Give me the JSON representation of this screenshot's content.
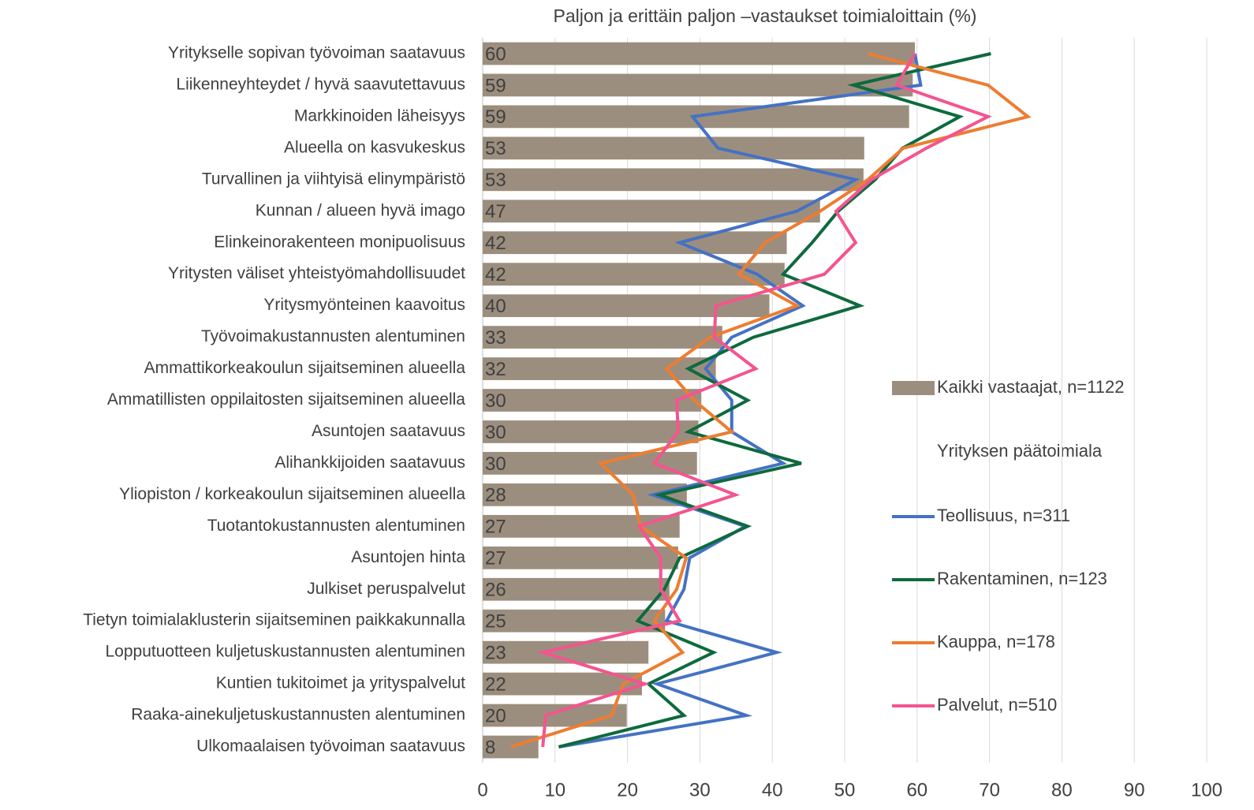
{
  "chart_data": {
    "type": "bar",
    "orientation": "horizontal",
    "title": "Paljon ja erittäin paljon –vastaukset toimialoittain (%)",
    "legend_subtitle": "Yrityksen päätoimiala",
    "categories": [
      "Yritykselle sopivan työvoiman saatavuus",
      "Liikenneyhteydet / hyvä saavutettavuus",
      "Markkinoiden läheisyys",
      "Alueella on kasvukeskus",
      "Turvallinen ja viihtyisä elinympäristö",
      "Kunnan / alueen hyvä imago",
      "Elinkeinorakenteen monipuolisuus",
      "Yritysten väliset yhteistyömahdollisuudet",
      "Yritysmyönteinen kaavoitus",
      "Työvoimakustannusten alentuminen",
      "Ammattikorkeakoulun sijaitseminen alueella",
      "Ammatillisten oppilaitosten sijaitseminen alueella",
      "Asuntojen saatavuus",
      "Alihankkijoiden saatavuus",
      "Yliopiston / korkeakoulun sijaitseminen alueella",
      "Tuotantokustannusten alentuminen",
      "Asuntojen hinta",
      "Julkiset peruspalvelut",
      "Tietyn toimialaklusterin sijaitseminen paikkakunnalla",
      "Lopputuotteen kuljetuskustannusten alentuminen",
      "Kuntien tukitoimet ja yrityspalvelut",
      "Raaka-ainekuljetuskustannusten alentuminen",
      "Ulkomaalaisen työvoiman saatavuus"
    ],
    "series": [
      {
        "name": "Kaikki vastaajat, n=1122",
        "type": "bar",
        "color": "#9c8e7e",
        "values": [
          59.7,
          59.4,
          58.9,
          52.7,
          52.6,
          46.6,
          42.0,
          41.7,
          39.6,
          33.1,
          32.2,
          30.2,
          29.8,
          29.6,
          28.2,
          27.2,
          27.0,
          25.8,
          25.2,
          22.9,
          22.0,
          19.9,
          7.7
        ],
        "value_labels": [
          "60",
          "59",
          "59",
          "53",
          "53",
          "47",
          "42",
          "42",
          "40",
          "33",
          "32",
          "30",
          "30",
          "30",
          "28",
          "27",
          "27",
          "26",
          "25",
          "23",
          "22",
          "20",
          "8"
        ]
      },
      {
        "name": "Teollisuus, n=311",
        "type": "line",
        "color": "#4472c4",
        "values": [
          59.7,
          60.5,
          29.0,
          32.5,
          51.5,
          43.4,
          27.2,
          37.9,
          44.2,
          34.4,
          30.8,
          34.4,
          34.4,
          41.5,
          23.5,
          36.3,
          28.6,
          27.8,
          25.4,
          40.6,
          24.1,
          36.4,
          10.5
        ]
      },
      {
        "name": "Rakentaminen, n=123",
        "type": "line",
        "color": "#0e6a3e",
        "values": [
          70.2,
          51.2,
          65.9,
          58.0,
          54.2,
          49.1,
          45.5,
          41.5,
          52.1,
          37.4,
          28.4,
          36.6,
          28.4,
          44.0,
          24.4,
          36.6,
          27.2,
          25.1,
          21.4,
          31.9,
          22.9,
          27.8,
          10.5
        ]
      },
      {
        "name": "Kauppa, n=178",
        "type": "line",
        "color": "#ed7d31",
        "values": [
          53.2,
          69.8,
          75.3,
          58.1,
          53.2,
          46.6,
          39.0,
          35.4,
          43.4,
          31.4,
          25.4,
          29.2,
          34.4,
          16.3,
          20.8,
          21.8,
          28.1,
          26.8,
          23.7,
          27.6,
          19.4,
          17.8,
          3.9
        ]
      },
      {
        "name": "Palvelut, n=510",
        "type": "line",
        "color": "#f4548f",
        "values": [
          59.7,
          57.2,
          69.8,
          61.3,
          53.7,
          48.8,
          51.5,
          47.2,
          32.2,
          32.0,
          37.7,
          26.8,
          27.0,
          23.7,
          34.9,
          21.6,
          24.6,
          24.6,
          27.2,
          8.3,
          22.4,
          8.7,
          8.3
        ]
      }
    ],
    "xlim": [
      0,
      100
    ],
    "xticks": [
      0,
      10,
      20,
      30,
      40,
      50,
      60,
      70,
      80,
      90,
      100
    ],
    "grid": true,
    "legend": "right"
  }
}
